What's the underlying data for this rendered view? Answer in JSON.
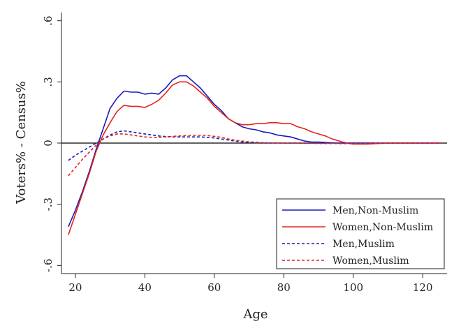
{
  "chart_data": {
    "type": "line",
    "title": "",
    "xlabel": "Age",
    "ylabel": "Voters% - Census%",
    "xlim": [
      16,
      127
    ],
    "ylim": [
      -0.64,
      0.64
    ],
    "x_ticks": [
      20,
      40,
      60,
      80,
      100,
      120
    ],
    "x_tick_labels": [
      "20",
      "40",
      "60",
      "80",
      "100",
      "120"
    ],
    "y_ticks": [
      -0.6,
      -0.3,
      0,
      0.3,
      0.6
    ],
    "y_tick_labels": [
      "-.6",
      "-.3",
      "0",
      ".3",
      ".6"
    ],
    "reference_line_y": 0,
    "grid": false,
    "legend_position": "bottom-right",
    "series": [
      {
        "name": "Men,Non-Muslim",
        "color": "#1a1ab8",
        "dash": "solid",
        "points": [
          [
            18,
            -0.41
          ],
          [
            20,
            -0.33
          ],
          [
            22,
            -0.24
          ],
          [
            24,
            -0.14
          ],
          [
            26,
            -0.03
          ],
          [
            28,
            0.07
          ],
          [
            30,
            0.17
          ],
          [
            32,
            0.22
          ],
          [
            34,
            0.255
          ],
          [
            36,
            0.25
          ],
          [
            38,
            0.25
          ],
          [
            40,
            0.24
          ],
          [
            42,
            0.245
          ],
          [
            44,
            0.24
          ],
          [
            46,
            0.27
          ],
          [
            48,
            0.31
          ],
          [
            50,
            0.33
          ],
          [
            52,
            0.33
          ],
          [
            54,
            0.3
          ],
          [
            56,
            0.27
          ],
          [
            58,
            0.23
          ],
          [
            60,
            0.19
          ],
          [
            62,
            0.16
          ],
          [
            64,
            0.12
          ],
          [
            66,
            0.1
          ],
          [
            68,
            0.08
          ],
          [
            70,
            0.07
          ],
          [
            72,
            0.065
          ],
          [
            74,
            0.055
          ],
          [
            76,
            0.05
          ],
          [
            78,
            0.04
          ],
          [
            80,
            0.035
          ],
          [
            82,
            0.03
          ],
          [
            84,
            0.02
          ],
          [
            86,
            0.01
          ],
          [
            88,
            0.005
          ],
          [
            90,
            0.005
          ],
          [
            95,
            0
          ],
          [
            100,
            0
          ],
          [
            110,
            0
          ],
          [
            125,
            0
          ]
        ]
      },
      {
        "name": "Women,Non-Muslim",
        "color": "#e3241b",
        "dash": "solid",
        "points": [
          [
            18,
            -0.45
          ],
          [
            20,
            -0.35
          ],
          [
            22,
            -0.25
          ],
          [
            24,
            -0.15
          ],
          [
            26,
            -0.04
          ],
          [
            28,
            0.04
          ],
          [
            30,
            0.1
          ],
          [
            32,
            0.155
          ],
          [
            34,
            0.185
          ],
          [
            36,
            0.18
          ],
          [
            38,
            0.18
          ],
          [
            40,
            0.175
          ],
          [
            42,
            0.19
          ],
          [
            44,
            0.21
          ],
          [
            46,
            0.245
          ],
          [
            48,
            0.285
          ],
          [
            50,
            0.3
          ],
          [
            52,
            0.3
          ],
          [
            54,
            0.28
          ],
          [
            56,
            0.25
          ],
          [
            58,
            0.22
          ],
          [
            60,
            0.18
          ],
          [
            62,
            0.15
          ],
          [
            64,
            0.12
          ],
          [
            66,
            0.1
          ],
          [
            68,
            0.09
          ],
          [
            70,
            0.09
          ],
          [
            72,
            0.095
          ],
          [
            74,
            0.095
          ],
          [
            76,
            0.1
          ],
          [
            78,
            0.1
          ],
          [
            80,
            0.095
          ],
          [
            82,
            0.095
          ],
          [
            84,
            0.08
          ],
          [
            86,
            0.07
          ],
          [
            88,
            0.055
          ],
          [
            90,
            0.045
          ],
          [
            92,
            0.035
          ],
          [
            94,
            0.02
          ],
          [
            96,
            0.01
          ],
          [
            98,
            0
          ],
          [
            100,
            -0.005
          ],
          [
            104,
            -0.005
          ],
          [
            110,
            0
          ],
          [
            125,
            0
          ]
        ]
      },
      {
        "name": "Men,Muslim",
        "color": "#1a1ab8",
        "dash": "dashed",
        "points": [
          [
            18,
            -0.085
          ],
          [
            20,
            -0.06
          ],
          [
            22,
            -0.04
          ],
          [
            24,
            -0.02
          ],
          [
            26,
            0
          ],
          [
            28,
            0.02
          ],
          [
            30,
            0.04
          ],
          [
            32,
            0.055
          ],
          [
            34,
            0.06
          ],
          [
            36,
            0.055
          ],
          [
            38,
            0.05
          ],
          [
            40,
            0.045
          ],
          [
            42,
            0.04
          ],
          [
            44,
            0.035
          ],
          [
            46,
            0.032
          ],
          [
            48,
            0.03
          ],
          [
            50,
            0.03
          ],
          [
            52,
            0.03
          ],
          [
            54,
            0.03
          ],
          [
            56,
            0.03
          ],
          [
            58,
            0.028
          ],
          [
            60,
            0.025
          ],
          [
            62,
            0.02
          ],
          [
            64,
            0.015
          ],
          [
            66,
            0.01
          ],
          [
            68,
            0.005
          ],
          [
            70,
            0.003
          ],
          [
            74,
            0
          ],
          [
            80,
            0
          ],
          [
            90,
            0
          ],
          [
            100,
            0
          ],
          [
            125,
            0
          ]
        ]
      },
      {
        "name": "Women,Muslim",
        "color": "#e3241b",
        "dash": "dashed",
        "points": [
          [
            18,
            -0.16
          ],
          [
            20,
            -0.12
          ],
          [
            22,
            -0.08
          ],
          [
            24,
            -0.045
          ],
          [
            26,
            -0.01
          ],
          [
            28,
            0.02
          ],
          [
            30,
            0.035
          ],
          [
            32,
            0.045
          ],
          [
            34,
            0.045
          ],
          [
            36,
            0.04
          ],
          [
            38,
            0.035
          ],
          [
            40,
            0.03
          ],
          [
            42,
            0.028
          ],
          [
            44,
            0.028
          ],
          [
            46,
            0.03
          ],
          [
            48,
            0.033
          ],
          [
            50,
            0.035
          ],
          [
            52,
            0.037
          ],
          [
            54,
            0.038
          ],
          [
            56,
            0.038
          ],
          [
            58,
            0.037
          ],
          [
            60,
            0.033
          ],
          [
            62,
            0.028
          ],
          [
            64,
            0.02
          ],
          [
            66,
            0.014
          ],
          [
            68,
            0.01
          ],
          [
            70,
            0.006
          ],
          [
            74,
            0.002
          ],
          [
            80,
            0
          ],
          [
            90,
            -0.002
          ],
          [
            100,
            -0.003
          ],
          [
            110,
            0
          ],
          [
            125,
            0
          ]
        ]
      }
    ]
  }
}
